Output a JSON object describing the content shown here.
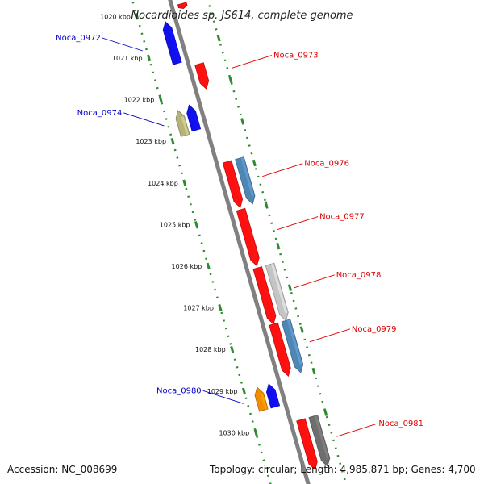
{
  "title": "Nocardioides sp. JS614, complete genome",
  "accession": "Accession: NC_008699",
  "summary": "Topology: circular; Length: 4,985,871 bp; Genes: 4,700",
  "colors": {
    "backbone": "#808080",
    "tick": "#2e8b2e",
    "reverse_label": "#0000cc",
    "forward_label": "#dd0000",
    "red": "#ff1010",
    "blue": "#1010ee",
    "khaki": "#b5b27a",
    "steel": "#4f86b4",
    "silver": "#c4c4c4",
    "orange": "#f28c00",
    "gray": "#6e6e6e"
  },
  "ticks": [
    "1020 kbp",
    "1021 kbp",
    "1022 kbp",
    "1023 kbp",
    "1024 kbp",
    "1025 kbp",
    "1026 kbp",
    "1027 kbp",
    "1028 kbp",
    "1029 kbp",
    "1030 kbp"
  ],
  "genes": [
    {
      "start": 1020.0,
      "end": 1020.12,
      "strand": "+",
      "color": "red",
      "label": ""
    },
    {
      "start": 1020.3,
      "end": 1021.3,
      "strand": "-",
      "color": "blue",
      "label": "Noca_0972"
    },
    {
      "start": 1021.45,
      "end": 1022.05,
      "strand": "+",
      "color": "red",
      "label": "Noca_0973"
    },
    {
      "start": 1022.35,
      "end": 1022.95,
      "strand": "-",
      "color": "khaki",
      "label": ""
    },
    {
      "start": 1022.3,
      "end": 1022.9,
      "strand": "-",
      "color": "blue",
      "label": "Noca_0974"
    },
    {
      "start": 1023.8,
      "end": 1024.9,
      "strand": "+",
      "color": "red",
      "label": ""
    },
    {
      "start": 1023.8,
      "end": 1024.9,
      "strand": "+",
      "color": "steel",
      "label": "Noca_0976"
    },
    {
      "start": 1024.95,
      "end": 1026.3,
      "strand": "+",
      "color": "red",
      "label": "Noca_0977"
    },
    {
      "start": 1026.35,
      "end": 1027.7,
      "strand": "+",
      "color": "red",
      "label": ""
    },
    {
      "start": 1026.35,
      "end": 1027.7,
      "strand": "+",
      "color": "silver",
      "label": "Noca_0978"
    },
    {
      "start": 1027.7,
      "end": 1028.95,
      "strand": "+",
      "color": "red",
      "label": ""
    },
    {
      "start": 1027.7,
      "end": 1028.95,
      "strand": "+",
      "color": "steel",
      "label": "Noca_0979"
    },
    {
      "start": 1029.0,
      "end": 1029.55,
      "strand": "-",
      "color": "orange",
      "label": "Noca_0980"
    },
    {
      "start": 1029.0,
      "end": 1029.55,
      "strand": "-",
      "color": "blue",
      "label": ""
    },
    {
      "start": 1030.0,
      "end": 1031.2,
      "strand": "+",
      "color": "red",
      "label": ""
    },
    {
      "start": 1030.0,
      "end": 1031.2,
      "strand": "+",
      "color": "gray",
      "label": "Noca_0981"
    }
  ]
}
